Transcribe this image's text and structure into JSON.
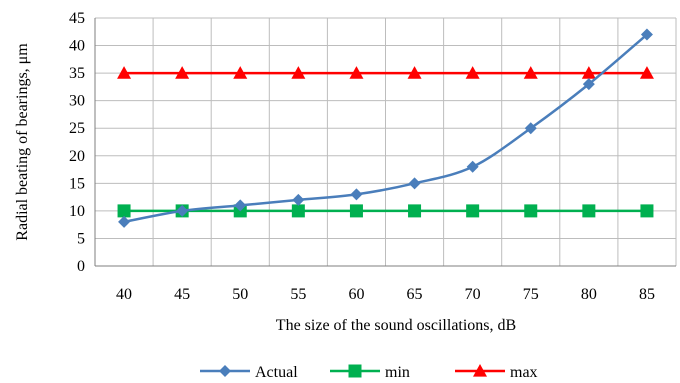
{
  "chart_data": {
    "type": "line",
    "title": "",
    "xlabel": "The size of the sound oscillations, dB",
    "ylabel": "Radial beating of bearings, μm",
    "x": [
      40,
      45,
      50,
      55,
      60,
      65,
      70,
      75,
      80,
      85
    ],
    "ylim": [
      0,
      45
    ],
    "yticks": [
      0,
      5,
      10,
      15,
      20,
      25,
      30,
      35,
      40,
      45
    ],
    "grid": true,
    "legend_position": "bottom",
    "series": [
      {
        "name": "Actual",
        "values": [
          8,
          10,
          11,
          12,
          13,
          15,
          18,
          25,
          33,
          42
        ],
        "color": "#4a7ebb",
        "marker": "diamond",
        "smooth": true
      },
      {
        "name": "min",
        "values": [
          10,
          10,
          10,
          10,
          10,
          10,
          10,
          10,
          10,
          10
        ],
        "color": "#00b050",
        "marker": "square",
        "smooth": false
      },
      {
        "name": "max",
        "values": [
          35,
          35,
          35,
          35,
          35,
          35,
          35,
          35,
          35,
          35
        ],
        "color": "#ff0000",
        "marker": "triangle",
        "smooth": false
      }
    ]
  }
}
